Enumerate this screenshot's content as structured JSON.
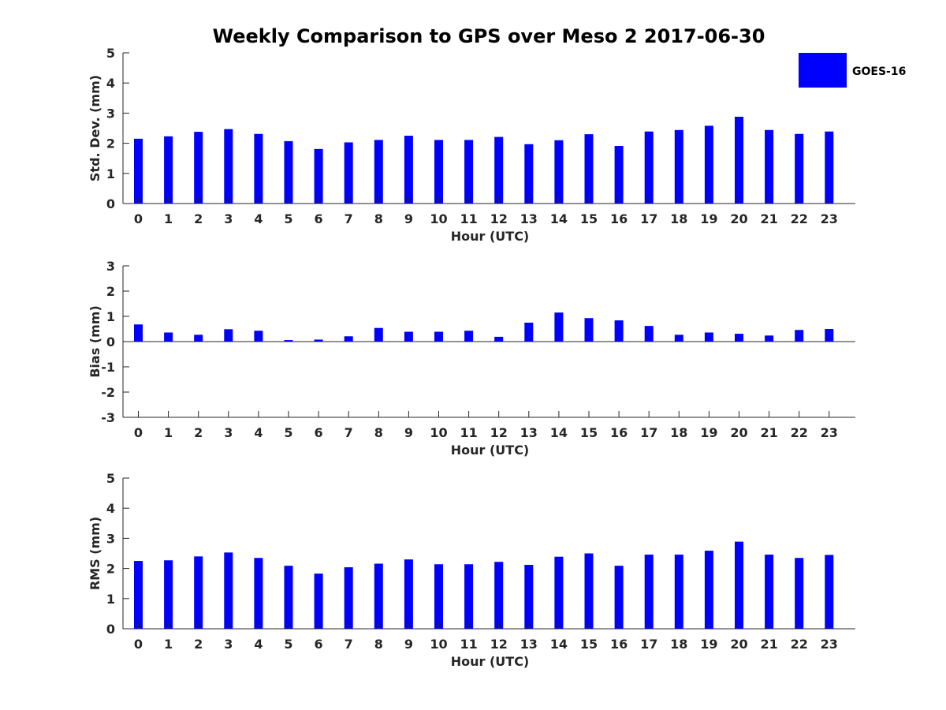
{
  "chart_data": {
    "title": "Weekly Comparison to GPS over Meso 2 2017-06-30",
    "legend": {
      "label": "GOES-16",
      "color": "#0000ff",
      "placement": "top-right"
    },
    "bar_color": "#0000ff",
    "panels": [
      {
        "type": "bar",
        "ylabel": "Std. Dev. (mm)",
        "xlabel": "Hour (UTC)",
        "ylim": [
          0,
          5
        ],
        "yticks": [
          0,
          1,
          2,
          3,
          4,
          5
        ],
        "categories": [
          "0",
          "1",
          "2",
          "3",
          "4",
          "5",
          "6",
          "7",
          "8",
          "9",
          "10",
          "11",
          "12",
          "13",
          "14",
          "15",
          "16",
          "17",
          "18",
          "19",
          "20",
          "21",
          "22",
          "23"
        ],
        "values": [
          2.15,
          2.23,
          2.38,
          2.47,
          2.31,
          2.07,
          1.81,
          2.03,
          2.11,
          2.25,
          2.11,
          2.11,
          2.21,
          1.97,
          2.1,
          2.3,
          1.91,
          2.39,
          2.44,
          2.58,
          2.88,
          2.44,
          2.31,
          2.39
        ],
        "show_zero_line": false
      },
      {
        "type": "bar",
        "ylabel": "Bias (mm)",
        "xlabel": "Hour (UTC)",
        "ylim": [
          -3,
          3
        ],
        "yticks": [
          -3,
          -2,
          -1,
          0,
          1,
          2,
          3
        ],
        "categories": [
          "0",
          "1",
          "2",
          "3",
          "4",
          "5",
          "6",
          "7",
          "8",
          "9",
          "10",
          "11",
          "12",
          "13",
          "14",
          "15",
          "16",
          "17",
          "18",
          "19",
          "20",
          "21",
          "22",
          "23"
        ],
        "values": [
          0.68,
          0.36,
          0.27,
          0.49,
          0.43,
          0.06,
          0.08,
          0.21,
          0.54,
          0.39,
          0.39,
          0.43,
          0.19,
          0.75,
          1.15,
          0.93,
          0.84,
          0.62,
          0.27,
          0.36,
          0.31,
          0.24,
          0.46,
          0.5
        ],
        "show_zero_line": true
      },
      {
        "type": "bar",
        "ylabel": "RMS (mm)",
        "xlabel": "Hour (UTC)",
        "ylim": [
          0,
          5
        ],
        "yticks": [
          0,
          1,
          2,
          3,
          4,
          5
        ],
        "categories": [
          "0",
          "1",
          "2",
          "3",
          "4",
          "5",
          "6",
          "7",
          "8",
          "9",
          "10",
          "11",
          "12",
          "13",
          "14",
          "15",
          "16",
          "17",
          "18",
          "19",
          "20",
          "21",
          "22",
          "23"
        ],
        "values": [
          2.25,
          2.27,
          2.4,
          2.53,
          2.35,
          2.09,
          1.83,
          2.04,
          2.16,
          2.3,
          2.14,
          2.14,
          2.22,
          2.12,
          2.39,
          2.5,
          2.09,
          2.46,
          2.46,
          2.59,
          2.89,
          2.46,
          2.35,
          2.45
        ],
        "show_zero_line": false
      }
    ]
  }
}
